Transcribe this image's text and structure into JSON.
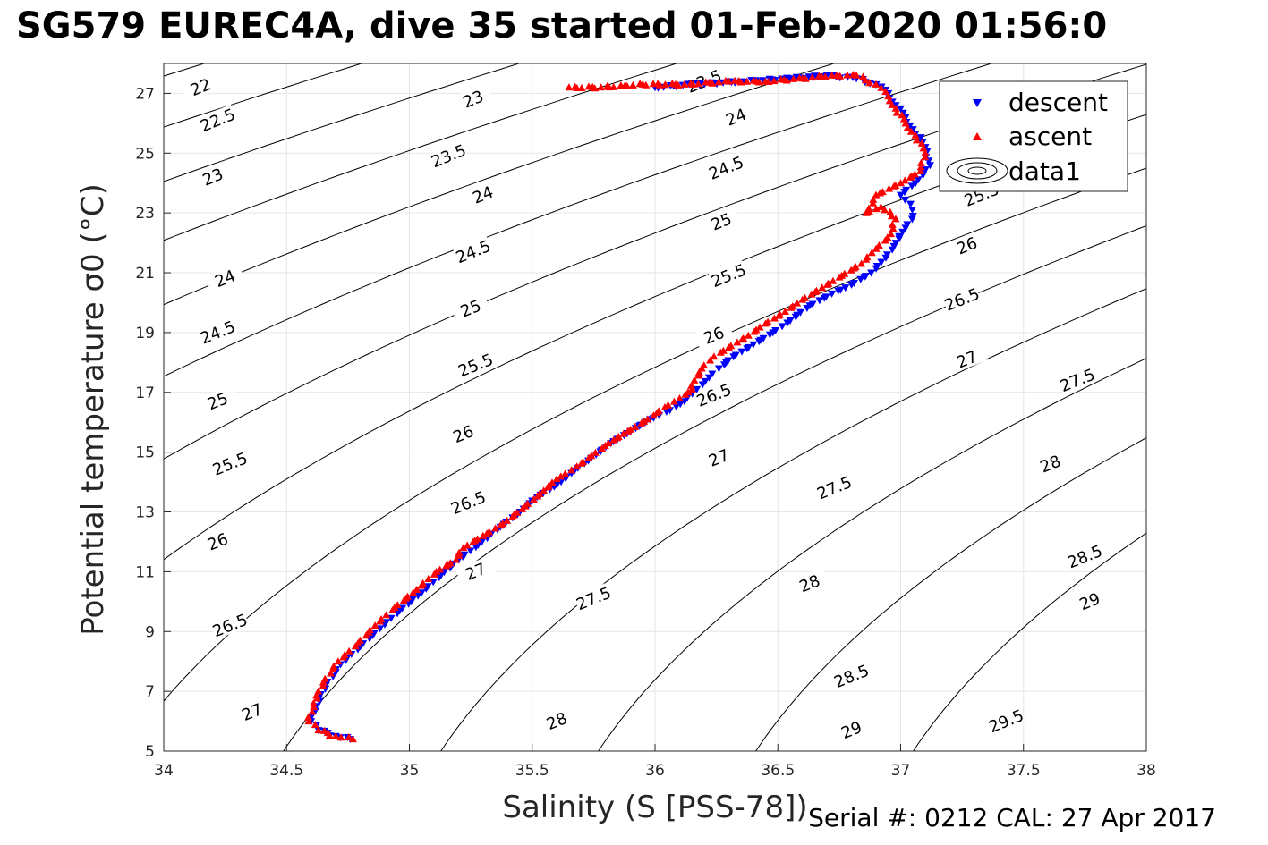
{
  "title": "SG579 EUREC4A, dive 35 started 01-Feb-2020 01:56:0",
  "footer": "Serial #: 0212  CAL: 27 Apr 2017",
  "chart_data": {
    "type": "scatter",
    "title": "SG579 EUREC4A, dive 35 started 01-Feb-2020 01:56:0",
    "xlabel": "Salinity (S [PSS-78])",
    "ylabel": "Potential temperature σ0 (°C)",
    "xlim": [
      34,
      38
    ],
    "ylim": [
      5,
      28
    ],
    "xticks": [
      34,
      34.5,
      35,
      35.5,
      36,
      36.5,
      37,
      37.5,
      38
    ],
    "xtick_labels": [
      "34",
      "34.5",
      "35",
      "35.5",
      "36",
      "36.5",
      "37",
      "37.5",
      "38"
    ],
    "yticks": [
      5,
      7,
      9,
      11,
      13,
      15,
      17,
      19,
      21,
      23,
      25,
      27
    ],
    "ytick_labels": [
      "5",
      "7",
      "9",
      "11",
      "13",
      "15",
      "17",
      "19",
      "21",
      "23",
      "25",
      "27"
    ],
    "grid": true,
    "legend_position": "top-right",
    "legend": [
      "descent",
      "ascent",
      "data1"
    ],
    "colors": {
      "descent": "#0000ff",
      "ascent": "#ff0000",
      "contours": "#000000",
      "grid": "#e6e6e6"
    },
    "series": [
      {
        "name": "descent",
        "marker": "triangle-down",
        "color": "#0000ff",
        "x": [
          34.76,
          34.7,
          34.63,
          34.6,
          34.62,
          34.66,
          34.72,
          34.8,
          34.88,
          34.96,
          35.05,
          35.13,
          35.2,
          35.28,
          35.37,
          35.45,
          35.52,
          35.6,
          35.66,
          35.74,
          35.82,
          35.9,
          35.98,
          36.06,
          36.12,
          36.17,
          36.22,
          36.26,
          36.32,
          36.4,
          36.48,
          36.55,
          36.63,
          36.72,
          36.8,
          36.88,
          36.94,
          36.98,
          37.02,
          37.05,
          37.04,
          37.0,
          37.06,
          37.12,
          37.1,
          37.05,
          37.02,
          36.98,
          36.95,
          36.9,
          36.82,
          36.7,
          36.55,
          36.35,
          36.15,
          36.0
        ],
        "y": [
          5.4,
          5.5,
          5.7,
          6.0,
          6.5,
          7.2,
          7.9,
          8.5,
          9.1,
          9.7,
          10.3,
          10.9,
          11.4,
          11.9,
          12.5,
          13.0,
          13.5,
          13.9,
          14.3,
          14.8,
          15.3,
          15.7,
          16.1,
          16.4,
          16.7,
          17.1,
          17.5,
          17.8,
          18.2,
          18.6,
          19.0,
          19.4,
          19.9,
          20.3,
          20.6,
          21.0,
          21.5,
          22.0,
          22.5,
          22.9,
          23.3,
          23.6,
          24.0,
          24.6,
          25.2,
          25.8,
          26.2,
          26.6,
          27.0,
          27.3,
          27.5,
          27.6,
          27.5,
          27.4,
          27.3,
          27.2
        ]
      },
      {
        "name": "ascent",
        "marker": "triangle-up",
        "color": "#ff0000",
        "x": [
          34.77,
          34.7,
          34.63,
          34.59,
          34.61,
          34.65,
          34.71,
          34.79,
          34.86,
          34.94,
          35.03,
          35.11,
          35.19,
          35.22,
          35.3,
          35.38,
          35.46,
          35.53,
          35.6,
          35.66,
          35.73,
          35.81,
          35.89,
          35.97,
          36.04,
          36.1,
          36.15,
          36.16,
          36.19,
          36.24,
          36.3,
          36.38,
          36.45,
          36.53,
          36.6,
          36.68,
          36.76,
          36.84,
          36.9,
          36.96,
          36.98,
          36.92,
          36.86,
          36.9,
          37.0,
          37.08,
          37.1,
          37.06,
          37.02,
          36.98,
          36.95,
          36.9,
          36.82,
          36.72,
          36.6,
          36.45,
          36.3,
          36.12,
          35.95,
          35.78,
          35.65
        ],
        "y": [
          5.4,
          5.5,
          5.7,
          6.0,
          6.6,
          7.3,
          8.0,
          8.6,
          9.2,
          9.8,
          10.4,
          11.0,
          11.4,
          11.8,
          12.2,
          12.6,
          13.1,
          13.6,
          14.1,
          14.4,
          14.8,
          15.3,
          15.7,
          16.1,
          16.5,
          16.8,
          17.1,
          17.4,
          17.8,
          18.2,
          18.5,
          18.9,
          19.3,
          19.7,
          20.1,
          20.5,
          20.9,
          21.3,
          21.8,
          22.3,
          22.8,
          23.2,
          23.0,
          23.6,
          24.0,
          24.4,
          25.0,
          25.6,
          26.0,
          26.5,
          26.9,
          27.3,
          27.6,
          27.6,
          27.5,
          27.4,
          27.4,
          27.3,
          27.3,
          27.2,
          27.2
        ]
      }
    ],
    "contours": {
      "name": "data1",
      "line_color": "#000000",
      "levels": [
        22,
        22.5,
        23,
        23.5,
        24,
        24.5,
        25,
        25.5,
        26,
        26.5,
        27,
        27.5,
        28,
        28.5,
        29,
        29.5
      ],
      "label_positions": [
        {
          "text": "22",
          "x": 34.15,
          "y": 27.2
        },
        {
          "text": "22.5",
          "x": 34.22,
          "y": 26.1
        },
        {
          "text": "23",
          "x": 34.2,
          "y": 24.2
        },
        {
          "text": "23",
          "x": 35.26,
          "y": 26.8
        },
        {
          "text": "23.5",
          "x": 35.16,
          "y": 24.9
        },
        {
          "text": "23.5",
          "x": 36.2,
          "y": 27.4
        },
        {
          "text": "24",
          "x": 34.25,
          "y": 20.8
        },
        {
          "text": "24",
          "x": 35.3,
          "y": 23.6
        },
        {
          "text": "24",
          "x": 36.33,
          "y": 26.2
        },
        {
          "text": "24.5",
          "x": 34.22,
          "y": 19.0
        },
        {
          "text": "24.5",
          "x": 35.26,
          "y": 21.7
        },
        {
          "text": "24.5",
          "x": 36.29,
          "y": 24.5
        },
        {
          "text": "25",
          "x": 34.22,
          "y": 16.7
        },
        {
          "text": "25",
          "x": 35.25,
          "y": 19.8
        },
        {
          "text": "25",
          "x": 36.27,
          "y": 22.7
        },
        {
          "text": "25.5",
          "x": 34.27,
          "y": 14.6
        },
        {
          "text": "25.5",
          "x": 35.27,
          "y": 17.9
        },
        {
          "text": "25.5",
          "x": 36.3,
          "y": 20.9
        },
        {
          "text": "25.5",
          "x": 37.33,
          "y": 23.6
        },
        {
          "text": "26",
          "x": 34.22,
          "y": 12.0
        },
        {
          "text": "26",
          "x": 35.22,
          "y": 15.6
        },
        {
          "text": "26",
          "x": 36.24,
          "y": 18.9
        },
        {
          "text": "26",
          "x": 37.27,
          "y": 21.9
        },
        {
          "text": "26.5",
          "x": 34.27,
          "y": 9.2
        },
        {
          "text": "26.5",
          "x": 35.24,
          "y": 13.3
        },
        {
          "text": "26.5",
          "x": 36.24,
          "y": 16.9
        },
        {
          "text": "26.5",
          "x": 37.25,
          "y": 20.1
        },
        {
          "text": "27",
          "x": 34.36,
          "y": 6.3
        },
        {
          "text": "27",
          "x": 35.27,
          "y": 11.0
        },
        {
          "text": "27",
          "x": 36.26,
          "y": 14.8
        },
        {
          "text": "27",
          "x": 37.27,
          "y": 18.1
        },
        {
          "text": "27.5",
          "x": 35.75,
          "y": 10.1
        },
        {
          "text": "27.5",
          "x": 36.73,
          "y": 13.8
        },
        {
          "text": "27.5",
          "x": 37.72,
          "y": 17.4
        },
        {
          "text": "28",
          "x": 35.6,
          "y": 6.0
        },
        {
          "text": "28",
          "x": 36.63,
          "y": 10.6
        },
        {
          "text": "28",
          "x": 37.61,
          "y": 14.6
        },
        {
          "text": "28.5",
          "x": 36.8,
          "y": 7.5
        },
        {
          "text": "28.5",
          "x": 37.75,
          "y": 11.5
        },
        {
          "text": "29",
          "x": 36.8,
          "y": 5.7
        },
        {
          "text": "29",
          "x": 37.77,
          "y": 10.0
        },
        {
          "text": "29.5",
          "x": 37.43,
          "y": 6.0
        }
      ]
    }
  }
}
